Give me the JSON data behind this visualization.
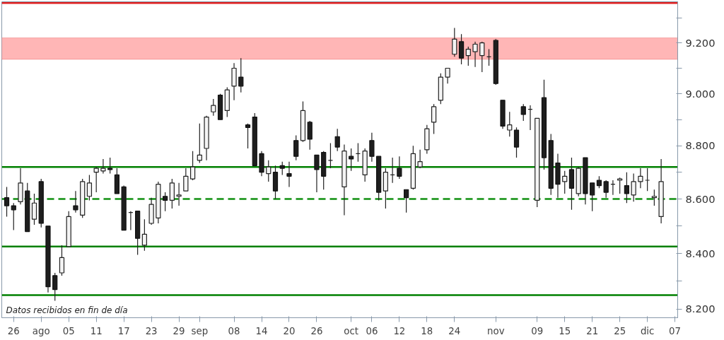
{
  "chart_data": {
    "type": "candlestick",
    "categories": [
      null,
      "26",
      null,
      null,
      null,
      "ago",
      null,
      null,
      null,
      "05",
      null,
      null,
      null,
      "11",
      null,
      null,
      null,
      "17",
      null,
      null,
      null,
      "23",
      null,
      null,
      null,
      "29",
      null,
      null,
      "sep",
      null,
      null,
      null,
      null,
      "08",
      null,
      null,
      null,
      "14",
      null,
      null,
      null,
      "20",
      null,
      null,
      null,
      "26",
      null,
      null,
      null,
      null,
      "oct",
      null,
      null,
      "06",
      null,
      null,
      null,
      "12",
      null,
      null,
      null,
      "18",
      null,
      null,
      null,
      "24",
      null,
      null,
      null,
      null,
      null,
      "nov",
      null,
      null,
      null,
      null,
      null,
      "09",
      null,
      null,
      null,
      "15",
      null,
      null,
      null,
      "21",
      null,
      null,
      null,
      "25",
      null,
      null,
      null,
      "dic",
      null,
      null,
      null,
      "07"
    ],
    "ohlc": [
      [
        8605,
        8645,
        8535,
        8575
      ],
      [
        8575,
        8585,
        8485,
        8560
      ],
      [
        8590,
        8715,
        8580,
        8660
      ],
      [
        8630,
        8660,
        8480,
        8480
      ],
      [
        8525,
        8620,
        8505,
        8585
      ],
      [
        8665,
        8675,
        8495,
        8510
      ],
      [
        8500,
        8500,
        8260,
        8280
      ],
      [
        8320,
        8330,
        8230,
        8270
      ],
      [
        8330,
        8430,
        8320,
        8385
      ],
      [
        8425,
        8555,
        8425,
        8535
      ],
      [
        8575,
        8630,
        8550,
        8560
      ],
      [
        8540,
        8675,
        8530,
        8665
      ],
      [
        8610,
        8690,
        8595,
        8660
      ],
      [
        8700,
        8720,
        8625,
        8715
      ],
      [
        8705,
        8750,
        8695,
        8715
      ],
      [
        8715,
        8755,
        8695,
        8710
      ],
      [
        8690,
        8715,
        8620,
        8620
      ],
      [
        8645,
        8650,
        8485,
        8485
      ],
      [
        8550,
        8555,
        8485,
        8550
      ],
      [
        8555,
        8555,
        8395,
        8455
      ],
      [
        8430,
        8525,
        8410,
        8470
      ],
      [
        8510,
        8605,
        8505,
        8580
      ],
      [
        8530,
        8665,
        8510,
        8655
      ],
      [
        8610,
        8625,
        8555,
        8595
      ],
      [
        8595,
        8675,
        8565,
        8660
      ],
      [
        8610,
        8660,
        8575,
        8615
      ],
      [
        8630,
        8715,
        8630,
        8685
      ],
      [
        8675,
        8780,
        8670,
        8720
      ],
      [
        8745,
        8885,
        8735,
        8765
      ],
      [
        8790,
        8915,
        8745,
        8910
      ],
      [
        8930,
        8980,
        8915,
        8955
      ],
      [
        8995,
        9000,
        8900,
        8900
      ],
      [
        8935,
        9025,
        8910,
        9015
      ],
      [
        9030,
        9120,
        8975,
        9100
      ],
      [
        9065,
        9140,
        9005,
        9030
      ],
      [
        8880,
        8885,
        8790,
        8870
      ],
      [
        8910,
        8925,
        8725,
        8725
      ],
      [
        8770,
        8780,
        8685,
        8700
      ],
      [
        8695,
        8745,
        8665,
        8720
      ],
      [
        8700,
        8725,
        8600,
        8630
      ],
      [
        8725,
        8740,
        8690,
        8715
      ],
      [
        8695,
        8740,
        8645,
        8685
      ],
      [
        8820,
        8840,
        8745,
        8760
      ],
      [
        8820,
        8970,
        8815,
        8935
      ],
      [
        8890,
        8895,
        8785,
        8825
      ],
      [
        8765,
        8765,
        8625,
        8710
      ],
      [
        8775,
        8780,
        8635,
        8685
      ],
      [
        8745,
        8810,
        8715,
        8745
      ],
      [
        8835,
        8865,
        8780,
        8795
      ],
      [
        8645,
        8805,
        8540,
        8780
      ],
      [
        8760,
        8790,
        8705,
        8750
      ],
      [
        8770,
        8810,
        8740,
        8770
      ],
      [
        8690,
        8790,
        8665,
        8780
      ],
      [
        8820,
        8850,
        8740,
        8760
      ],
      [
        8760,
        8760,
        8595,
        8625
      ],
      [
        8630,
        8715,
        8565,
        8700
      ],
      [
        8690,
        8755,
        8660,
        8690
      ],
      [
        8715,
        8760,
        8675,
        8685
      ],
      [
        8635,
        8635,
        8550,
        8605
      ],
      [
        8640,
        8800,
        8635,
        8770
      ],
      [
        8720,
        8785,
        8715,
        8740
      ],
      [
        8785,
        8880,
        8770,
        8865
      ],
      [
        8890,
        8960,
        8845,
        8950
      ],
      [
        8975,
        9080,
        8960,
        9065
      ],
      [
        9065,
        9100,
        9040,
        9100
      ],
      [
        9155,
        9260,
        9145,
        9215
      ],
      [
        9205,
        9235,
        9115,
        9140
      ],
      [
        9150,
        9185,
        9110,
        9175
      ],
      [
        9165,
        9205,
        9105,
        9195
      ],
      [
        9150,
        9205,
        9085,
        9200
      ],
      [
        9145,
        9175,
        9110,
        9145
      ],
      [
        9210,
        9215,
        9035,
        9040
      ],
      [
        8975,
        8975,
        8865,
        8875
      ],
      [
        8860,
        8930,
        8835,
        8880
      ],
      [
        8860,
        8870,
        8755,
        8795
      ],
      [
        8950,
        8960,
        8895,
        8920
      ],
      [
        8940,
        8955,
        8860,
        8940
      ],
      [
        8595,
        8905,
        8570,
        8905
      ],
      [
        8985,
        9055,
        8710,
        8755
      ],
      [
        8820,
        8845,
        8615,
        8640
      ],
      [
        8735,
        8770,
        8605,
        8655
      ],
      [
        8665,
        8705,
        8620,
        8685
      ],
      [
        8710,
        8755,
        8560,
        8640
      ],
      [
        8620,
        8720,
        8610,
        8715
      ],
      [
        8755,
        8755,
        8580,
        8620
      ],
      [
        8660,
        8660,
        8555,
        8615
      ],
      [
        8670,
        8685,
        8640,
        8650
      ],
      [
        8665,
        8670,
        8605,
        8625
      ],
      [
        8655,
        8670,
        8615,
        8655
      ],
      [
        8670,
        8680,
        8620,
        8675
      ],
      [
        8650,
        8700,
        8585,
        8620
      ],
      [
        8615,
        8695,
        8590,
        8665
      ],
      [
        8665,
        8715,
        8640,
        8685
      ],
      [
        8670,
        8715,
        8630,
        8670
      ],
      [
        8605,
        8635,
        8575,
        8610
      ],
      [
        8535,
        8750,
        8510,
        8665
      ],
      null,
      null
    ],
    "log": "y",
    "ylim": [
      8170,
      9365
    ],
    "yticks": [
      {
        "value": 8200,
        "label": "8.200"
      },
      {
        "value": 8300,
        "label": null
      },
      {
        "value": 8400,
        "label": "8.400"
      },
      {
        "value": 8500,
        "label": null
      },
      {
        "value": 8600,
        "label": "8.600"
      },
      {
        "value": 8700,
        "label": null
      },
      {
        "value": 8800,
        "label": "8.800"
      },
      {
        "value": 8900,
        "label": null
      },
      {
        "value": 9000,
        "label": "9.000"
      },
      {
        "value": 9100,
        "label": null
      },
      {
        "value": 9200,
        "label": "9.200"
      },
      {
        "value": 9300,
        "label": null
      }
    ],
    "ref_lines": [
      {
        "axis": "y",
        "value": 9360,
        "color": "#e02020",
        "line_style": "solid"
      },
      {
        "axis": "y",
        "value": 8720,
        "color": "#008000",
        "line_style": "solid"
      },
      {
        "axis": "y",
        "value": 8600,
        "color": "#109010",
        "line_style": "dashed"
      },
      {
        "axis": "y",
        "value": 8425,
        "color": "#008000",
        "line_style": "solid"
      },
      {
        "axis": "y",
        "value": 8250,
        "color": "#008000",
        "line_style": "solid"
      }
    ],
    "bands": [
      {
        "axis": "y",
        "from": 9135,
        "to": 9220,
        "color": "#ffb6b6"
      }
    ],
    "annotations": [
      "Datos recibidos en fin de día"
    ],
    "grid": false
  }
}
